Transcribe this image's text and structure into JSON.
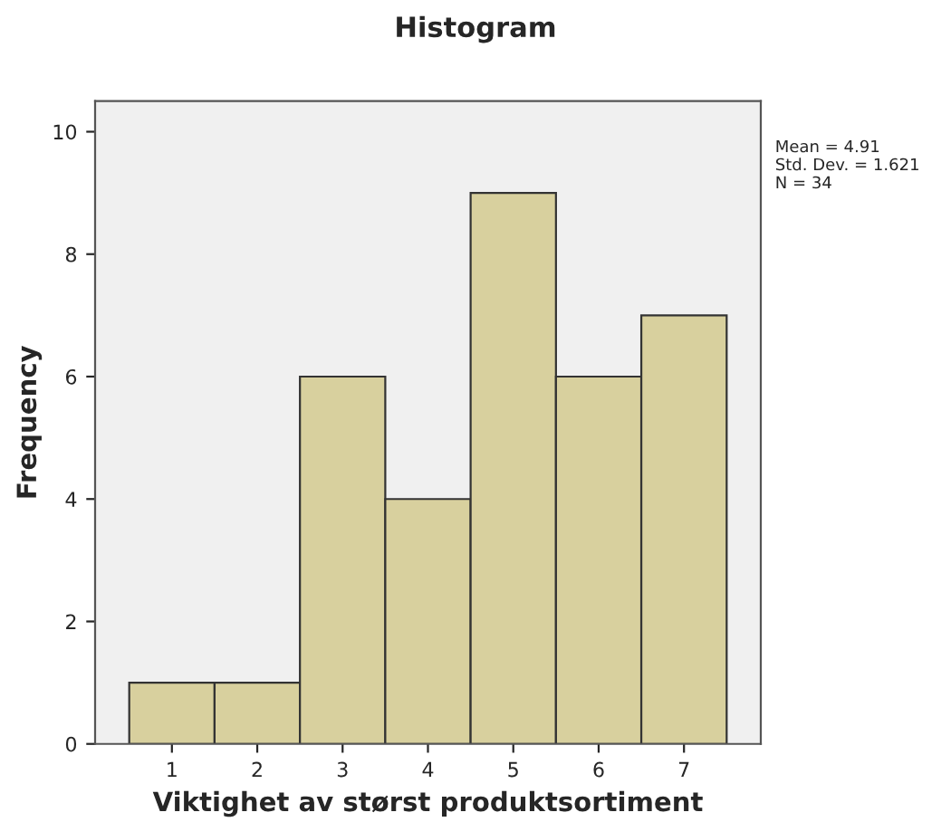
{
  "chart_data": {
    "type": "histogram",
    "title": "Histogram",
    "xlabel": "Viktighet av størst produktsortiment",
    "ylabel": "Frequency",
    "bins": [
      0.5,
      1.5,
      2.5,
      3.5,
      4.5,
      5.5,
      6.5,
      7.5
    ],
    "values": [
      1,
      1,
      6,
      4,
      9,
      6,
      7
    ],
    "color": "#d8d09e",
    "xlim": [
      0.1,
      7.9
    ],
    "xticks": [
      1,
      2,
      3,
      4,
      5,
      6,
      7
    ],
    "ylim": [
      0,
      10.5
    ],
    "yticks": [
      0,
      2,
      4,
      6,
      8,
      10
    ],
    "grid": false,
    "annotations": [
      "Mean = 4.91",
      "Std. Dev. = 1.621",
      "N = 34"
    ]
  }
}
